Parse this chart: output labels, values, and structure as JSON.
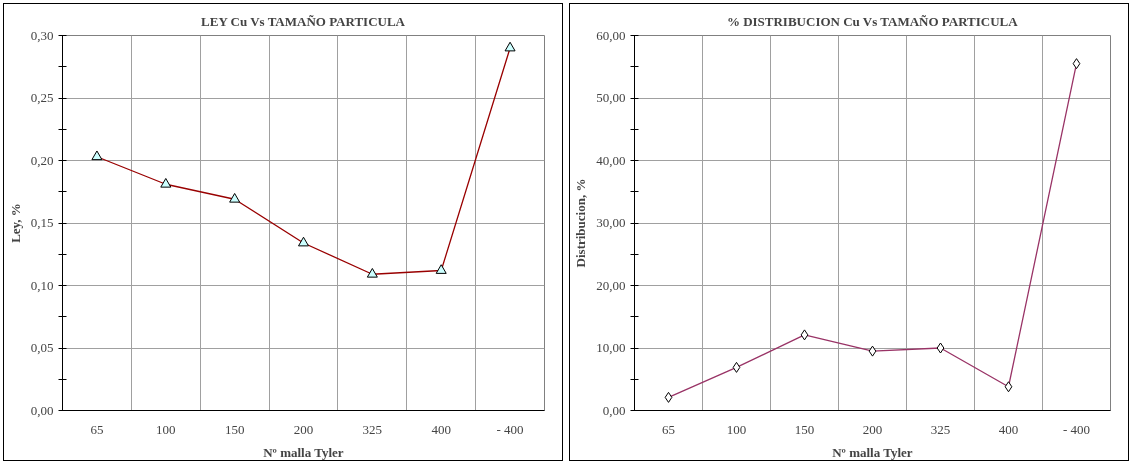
{
  "chart_data": [
    {
      "type": "line",
      "title": "LEY Cu Vs TAMAÑO PARTICULA",
      "xlabel": "Nº malla Tyler",
      "ylabel": "Ley, %",
      "categories": [
        "65",
        "100",
        "150",
        "200",
        "325",
        "400",
        "- 400"
      ],
      "series": [
        {
          "color": "#990000",
          "values": [
            0.203,
            0.181,
            0.169,
            0.134,
            0.109,
            0.112,
            0.29
          ]
        }
      ],
      "ylim": [
        0,
        0.3
      ],
      "yticks": [
        {
          "value": 0,
          "label": "0,00"
        },
        {
          "value": 0.025,
          "label": null
        },
        {
          "value": 0.05,
          "label": "0,05"
        },
        {
          "value": 0.075,
          "label": null
        },
        {
          "value": 0.1,
          "label": "0,10"
        },
        {
          "value": 0.125,
          "label": null
        },
        {
          "value": 0.15,
          "label": "0,15"
        },
        {
          "value": 0.175,
          "label": null
        },
        {
          "value": 0.2,
          "label": "0,20"
        },
        {
          "value": 0.225,
          "label": null
        },
        {
          "value": 0.25,
          "label": "0,25"
        },
        {
          "value": 0.275,
          "label": null
        },
        {
          "value": 0.3,
          "label": "0,30"
        }
      ],
      "grid": true,
      "marker": "triangle",
      "line_style": "solid"
    },
    {
      "type": "line",
      "title": "% DISTRIBUCION Cu Vs TAMAÑO PARTICULA",
      "xlabel": "Nº malla Tyler",
      "ylabel": "Distribucion, %",
      "categories": [
        "65",
        "100",
        "150",
        "200",
        "325",
        "400",
        "- 400"
      ],
      "series": [
        {
          "color": "#993366",
          "values": [
            2.1,
            6.9,
            12.1,
            9.5,
            10.0,
            3.8,
            55.5
          ]
        }
      ],
      "ylim": [
        0,
        60
      ],
      "yticks": [
        {
          "value": 0,
          "label": "0,00"
        },
        {
          "value": 5,
          "label": null
        },
        {
          "value": 10,
          "label": "10,00"
        },
        {
          "value": 15,
          "label": null
        },
        {
          "value": 20,
          "label": "20,00"
        },
        {
          "value": 25,
          "label": null
        },
        {
          "value": 30,
          "label": "30,00"
        },
        {
          "value": 35,
          "label": null
        },
        {
          "value": 40,
          "label": "40,00"
        },
        {
          "value": 45,
          "label": null
        },
        {
          "value": 50,
          "label": "50,00"
        },
        {
          "value": 55,
          "label": null
        },
        {
          "value": 60,
          "label": "60,00"
        }
      ],
      "grid": true,
      "marker": "diamond",
      "line_style": "solid"
    }
  ]
}
